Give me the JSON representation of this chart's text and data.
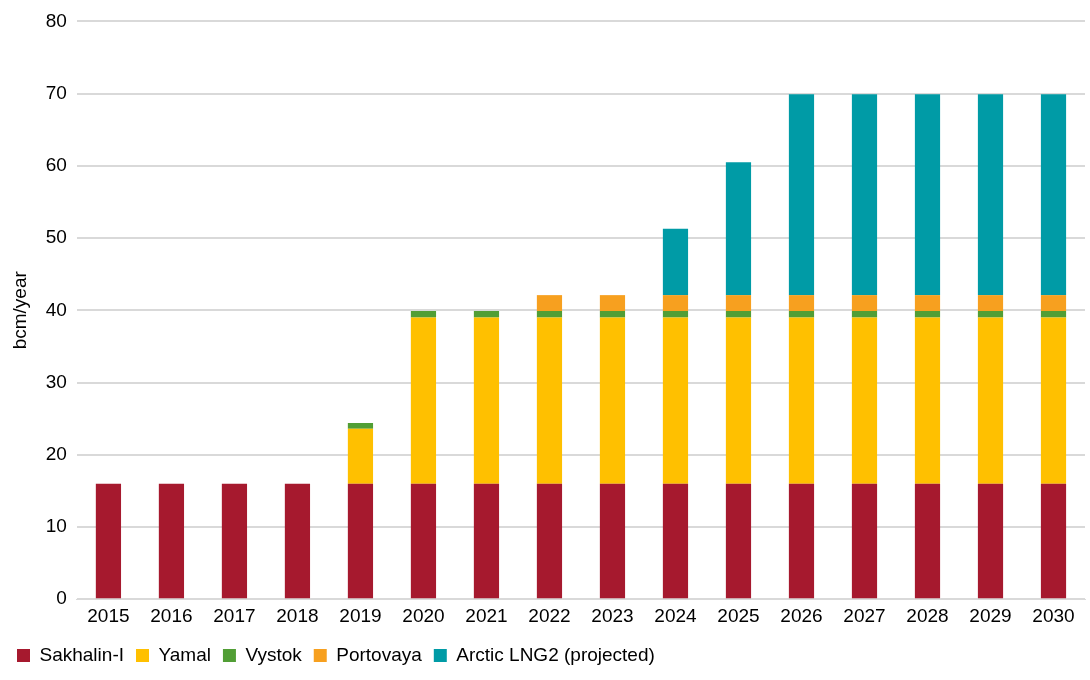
{
  "chart_data": {
    "type": "bar",
    "stacked": true,
    "ylabel": "bcm/year",
    "ylim": [
      0,
      80
    ],
    "yticks": [
      0,
      10,
      20,
      30,
      40,
      50,
      60,
      70,
      80
    ],
    "grid": "y",
    "legend": "bottom",
    "categories": [
      "2015",
      "2016",
      "2017",
      "2018",
      "2019",
      "2020",
      "2021",
      "2022",
      "2023",
      "2024",
      "2025",
      "2026",
      "2027",
      "2028",
      "2029",
      "2030"
    ],
    "series": [
      {
        "name": "Sakhalin-I",
        "color": "#a6192e",
        "values": [
          16,
          16,
          16,
          16,
          16,
          16,
          16,
          16,
          16,
          16,
          16,
          16,
          16,
          16,
          16,
          16
        ]
      },
      {
        "name": "Yamal",
        "color": "#ffc000",
        "values": [
          null,
          null,
          null,
          null,
          7.6,
          23,
          23,
          23,
          23,
          23,
          23,
          23,
          23,
          23,
          23,
          23
        ]
      },
      {
        "name": "Vystok",
        "color": "#519e35",
        "values": [
          null,
          null,
          null,
          null,
          0.8,
          0.9,
          0.9,
          0.9,
          0.9,
          0.9,
          0.9,
          0.9,
          0.9,
          0.9,
          0.9,
          0.9
        ]
      },
      {
        "name": "Portovaya",
        "color": "#f7a01f",
        "values": [
          null,
          null,
          null,
          null,
          null,
          null,
          null,
          2.2,
          2.2,
          2.2,
          2.2,
          2.2,
          2.2,
          2.2,
          2.2,
          2.2
        ]
      },
      {
        "name": "Arctic LNG2 (projected)",
        "color": "#009ba6",
        "values": [
          null,
          null,
          null,
          null,
          null,
          null,
          null,
          null,
          null,
          9.2,
          18.4,
          27.8,
          27.8,
          27.8,
          27.8,
          27.8
        ]
      }
    ]
  }
}
